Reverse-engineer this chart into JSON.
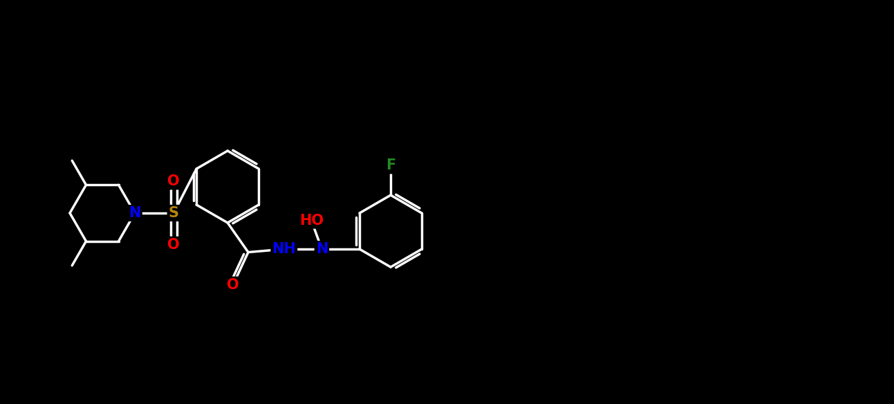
{
  "background_color": "#000000",
  "bond_width": 2.5,
  "atom_colors": {
    "N": "#0000FF",
    "O": "#FF0000",
    "S": "#B8860B",
    "F": "#228B22"
  },
  "fig_width": 12.93,
  "fig_height": 5.84
}
